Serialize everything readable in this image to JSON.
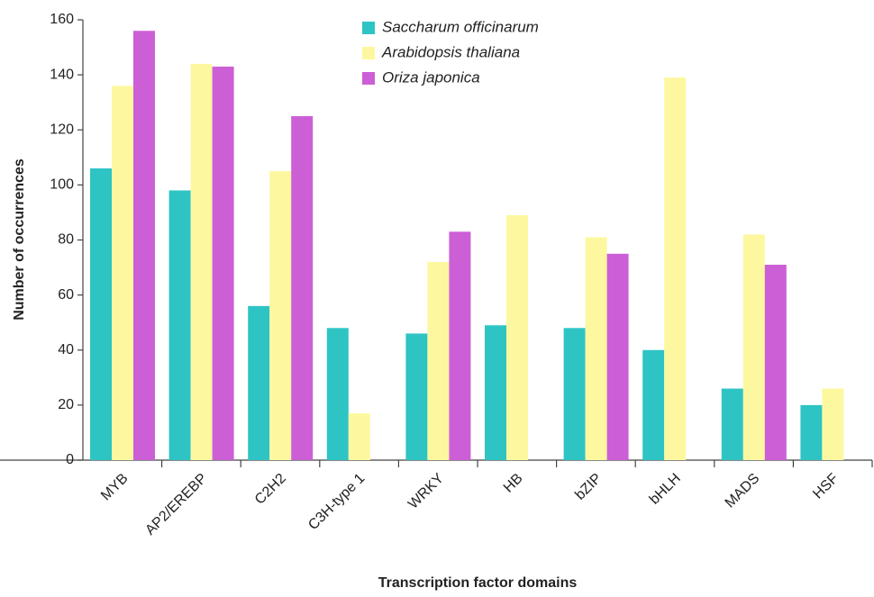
{
  "chart_data": {
    "type": "bar",
    "x_label": "Transcription factor domains",
    "y_label": "Number of occurrences",
    "categories": [
      "MYB",
      "AP2/EREBP",
      "C2H2",
      "C3H-type 1",
      "WRKY",
      "HB",
      "bZIP",
      "bHLH",
      "MADS",
      "HSF"
    ],
    "series": [
      {
        "name": "Saccharum officinarum",
        "color": "#2ec4c4",
        "values": [
          106,
          98,
          56,
          48,
          46,
          49,
          48,
          40,
          26,
          20
        ]
      },
      {
        "name": "Arabidopsis thaliana",
        "color": "#fdf8a0",
        "values": [
          136,
          144,
          105,
          17,
          72,
          89,
          81,
          139,
          82,
          26
        ]
      },
      {
        "name": "Oriza japonica",
        "color": "#cc5fd6",
        "values": [
          156,
          143,
          125,
          0,
          83,
          0,
          75,
          0,
          71,
          0
        ]
      }
    ],
    "ylim": [
      0,
      160
    ],
    "yticks": [
      0,
      20,
      40,
      60,
      80,
      100,
      120,
      140,
      160
    ],
    "legend": "top"
  }
}
